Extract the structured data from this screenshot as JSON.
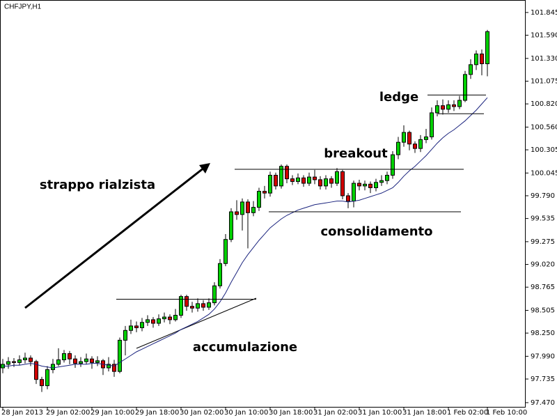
{
  "chart_data": {
    "type": "candlestick",
    "title": "CHFJPY,H1",
    "up_color": "#00d000",
    "down_color": "#d00000",
    "outline_color": "#000000",
    "categories": [
      "28 Jan 2013",
      null,
      null,
      null,
      null,
      null,
      null,
      null,
      "29 Jan 02:00",
      null,
      null,
      null,
      null,
      null,
      null,
      null,
      "29 Jan 10:00",
      null,
      null,
      null,
      null,
      null,
      null,
      null,
      "29 Jan 18:00",
      null,
      null,
      null,
      null,
      null,
      null,
      null,
      "30 Jan 02:00",
      null,
      null,
      null,
      null,
      null,
      null,
      null,
      "30 Jan 10:00",
      null,
      null,
      null,
      null,
      null,
      null,
      null,
      "30 Jan 18:00",
      null,
      null,
      null,
      null,
      null,
      null,
      null,
      "31 Jan 02:00",
      null,
      null,
      null,
      null,
      null,
      null,
      null,
      "31 Jan 10:00",
      null,
      null,
      null,
      null,
      null,
      null,
      null,
      "31 Jan 18:00",
      null,
      null,
      null,
      null,
      null,
      null,
      null,
      "1 Feb 02:00",
      null,
      null,
      null,
      null,
      null,
      null,
      "1 Feb 10:00"
    ],
    "open": [
      97.86,
      97.9,
      97.93,
      97.92,
      97.95,
      97.97,
      97.93,
      97.73,
      97.66,
      97.84,
      97.9,
      97.95,
      98.02,
      97.96,
      97.91,
      97.93,
      97.96,
      97.92,
      97.94,
      97.86,
      97.9,
      97.82,
      98.17,
      98.28,
      98.33,
      98.31,
      98.37,
      98.4,
      98.36,
      98.41,
      98.43,
      98.4,
      98.45,
      98.66,
      98.55,
      98.53,
      98.58,
      98.54,
      98.59,
      98.78,
      99.03,
      99.3,
      99.61,
      99.58,
      99.72,
      99.6,
      99.66,
      99.84,
      99.82,
      100.02,
      99.9,
      100.12,
      99.98,
      99.95,
      99.99,
      99.93,
      100.0,
      99.97,
      99.9,
      99.98,
      99.93,
      100.06,
      99.79,
      99.73,
      99.93,
      99.9,
      99.92,
      99.88,
      99.94,
      99.96,
      100.02,
      100.25,
      100.39,
      100.5,
      100.37,
      100.32,
      100.42,
      100.45,
      100.72,
      100.8,
      100.76,
      100.81,
      100.79,
      100.86,
      101.15,
      101.26,
      101.38,
      101.27
    ],
    "high": [
      97.96,
      97.98,
      97.97,
      98.0,
      98.03,
      98.0,
      97.95,
      97.76,
      97.88,
      97.96,
      98.08,
      98.06,
      98.05,
      98.0,
      97.98,
      98.02,
      97.99,
      97.99,
      97.96,
      97.98,
      97.95,
      98.2,
      98.33,
      98.4,
      98.38,
      98.42,
      98.45,
      98.43,
      98.46,
      98.48,
      98.46,
      98.52,
      98.68,
      98.68,
      98.6,
      98.64,
      98.62,
      98.64,
      98.82,
      99.08,
      99.36,
      99.65,
      99.74,
      99.76,
      99.75,
      99.73,
      99.88,
      99.9,
      100.06,
      100.05,
      100.14,
      100.14,
      100.02,
      100.04,
      100.02,
      100.05,
      100.08,
      100.01,
      100.02,
      100.01,
      100.1,
      100.08,
      99.82,
      99.96,
      99.97,
      99.96,
      99.95,
      99.98,
      100.02,
      100.06,
      100.29,
      100.45,
      100.58,
      100.52,
      100.4,
      100.47,
      100.54,
      100.78,
      100.86,
      100.87,
      100.86,
      100.86,
      100.91,
      101.19,
      101.32,
      101.42,
      101.43,
      101.65
    ],
    "low": [
      97.8,
      97.85,
      97.87,
      97.89,
      97.91,
      97.88,
      97.68,
      97.59,
      97.62,
      97.8,
      97.88,
      97.92,
      97.9,
      97.86,
      97.87,
      97.9,
      97.85,
      97.88,
      97.78,
      97.82,
      97.76,
      97.8,
      98.0,
      98.24,
      98.26,
      98.27,
      98.33,
      98.31,
      98.33,
      98.37,
      98.35,
      98.38,
      98.42,
      98.5,
      98.48,
      98.49,
      98.5,
      98.51,
      98.56,
      98.75,
      99.0,
      99.27,
      99.52,
      99.4,
      99.2,
      99.56,
      99.62,
      99.76,
      99.78,
      99.86,
      99.87,
      99.93,
      99.91,
      99.92,
      99.89,
      99.9,
      99.92,
      99.86,
      99.86,
      99.88,
      99.9,
      99.75,
      99.65,
      99.66,
      99.85,
      99.85,
      99.82,
      99.84,
      99.9,
      99.92,
      99.98,
      100.2,
      100.34,
      100.3,
      100.27,
      100.28,
      100.38,
      100.42,
      100.68,
      100.7,
      100.72,
      100.74,
      100.76,
      100.84,
      101.1,
      101.2,
      101.14,
      101.13
    ],
    "close": [
      97.9,
      97.93,
      97.92,
      97.95,
      97.97,
      97.93,
      97.73,
      97.66,
      97.84,
      97.9,
      97.95,
      98.02,
      97.96,
      97.91,
      97.93,
      97.96,
      97.92,
      97.94,
      97.86,
      97.9,
      97.82,
      98.17,
      98.28,
      98.33,
      98.31,
      98.37,
      98.4,
      98.36,
      98.41,
      98.43,
      98.4,
      98.45,
      98.66,
      98.55,
      98.53,
      98.58,
      98.54,
      98.59,
      98.78,
      99.03,
      99.3,
      99.61,
      99.58,
      99.72,
      99.6,
      99.66,
      99.84,
      99.82,
      100.02,
      99.9,
      100.12,
      99.98,
      99.95,
      99.99,
      99.93,
      100.0,
      99.97,
      99.9,
      99.98,
      99.93,
      100.06,
      99.79,
      99.73,
      99.93,
      99.9,
      99.92,
      99.88,
      99.94,
      99.96,
      100.02,
      100.25,
      100.39,
      100.5,
      100.37,
      100.32,
      100.42,
      100.45,
      100.72,
      100.8,
      100.76,
      100.81,
      100.79,
      100.86,
      101.15,
      101.26,
      101.38,
      101.27,
      101.63
    ],
    "moving_average": {
      "color": "#1a237e",
      "values": [
        97.88,
        97.88,
        97.89,
        97.89,
        97.9,
        97.91,
        97.9,
        97.88,
        97.87,
        97.86,
        97.87,
        97.88,
        97.89,
        97.9,
        97.9,
        97.9,
        97.91,
        97.91,
        97.9,
        97.89,
        97.88,
        97.92,
        97.96,
        98.0,
        98.04,
        98.07,
        98.1,
        98.13,
        98.16,
        98.19,
        98.22,
        98.25,
        98.29,
        98.32,
        98.35,
        98.38,
        98.42,
        98.46,
        98.52,
        98.6,
        98.7,
        98.82,
        98.93,
        99.04,
        99.13,
        99.21,
        99.29,
        99.36,
        99.43,
        99.48,
        99.53,
        99.57,
        99.6,
        99.63,
        99.65,
        99.67,
        99.69,
        99.7,
        99.71,
        99.72,
        99.73,
        99.73,
        99.72,
        99.73,
        99.74,
        99.76,
        99.78,
        99.8,
        99.82,
        99.85,
        99.88,
        99.94,
        100.01,
        100.07,
        100.12,
        100.18,
        100.24,
        100.31,
        100.38,
        100.44,
        100.49,
        100.53,
        100.58,
        100.63,
        100.69,
        100.75,
        100.82,
        100.89
      ]
    },
    "levels": [
      98.63,
      100.087,
      99.61,
      100.92,
      100.71
    ],
    "annotations": [
      "strappo rialzista",
      "breakout",
      "consolidamento",
      "ledge",
      "accumulazione"
    ],
    "ylim": [
      97.415,
      101.985
    ],
    "yticks": [
      {
        "value": 97.47,
        "label": "97.470"
      },
      {
        "value": 97.735,
        "label": "97.735"
      },
      {
        "value": 97.99,
        "label": "97.990"
      },
      {
        "value": 98.25,
        "label": "98.250"
      },
      {
        "value": 98.505,
        "label": "98.505"
      },
      {
        "value": 98.765,
        "label": "98.765"
      },
      {
        "value": 99.02,
        "label": "99.020"
      },
      {
        "value": 99.275,
        "label": "99.275"
      },
      {
        "value": 99.535,
        "label": "99.535"
      },
      {
        "value": 99.79,
        "label": "99.790"
      },
      {
        "value": 100.045,
        "label": "100.045"
      },
      {
        "value": 100.305,
        "label": "100.305"
      },
      {
        "value": 100.56,
        "label": "100.560"
      },
      {
        "value": 100.82,
        "label": "100.820"
      },
      {
        "value": 101.075,
        "label": "101.075"
      },
      {
        "value": 101.33,
        "label": "101.330"
      },
      {
        "value": 101.59,
        "label": "101.590"
      },
      {
        "value": 101.845,
        "label": "101.845"
      }
    ]
  }
}
